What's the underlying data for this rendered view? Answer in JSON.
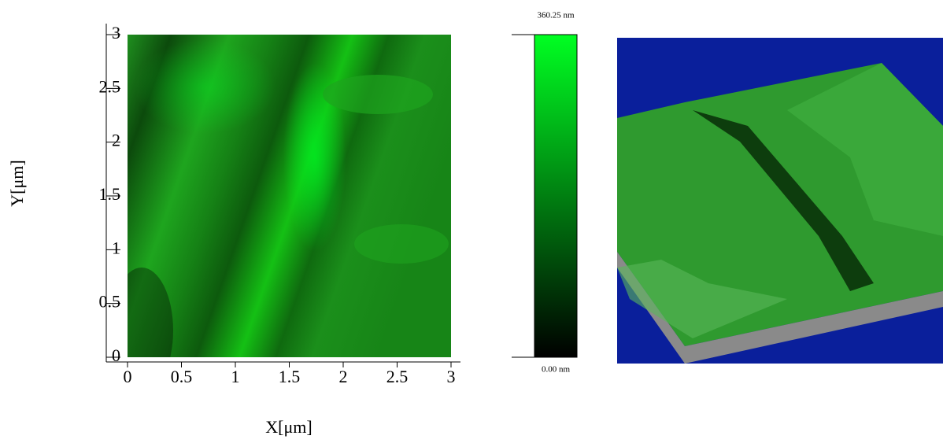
{
  "chart_data": {
    "type": "heatmap",
    "xlabel": "X[μm]",
    "ylabel": "Y[μm]",
    "xlim": [
      0,
      3
    ],
    "ylim": [
      0,
      3
    ],
    "xticks": [
      0,
      0.5,
      1,
      1.5,
      2,
      2.5,
      3
    ],
    "yticks": [
      0,
      0.5,
      1,
      1.5,
      2,
      2.5,
      3
    ],
    "zlim": [
      0,
      360.25
    ],
    "colorbar_ticks": [
      {
        "value": 360.25,
        "label": "360.25 nm"
      },
      {
        "value": 0,
        "label": "0.00 nm"
      }
    ],
    "colormap": [
      "#000000",
      "#00ff22"
    ]
  }
}
